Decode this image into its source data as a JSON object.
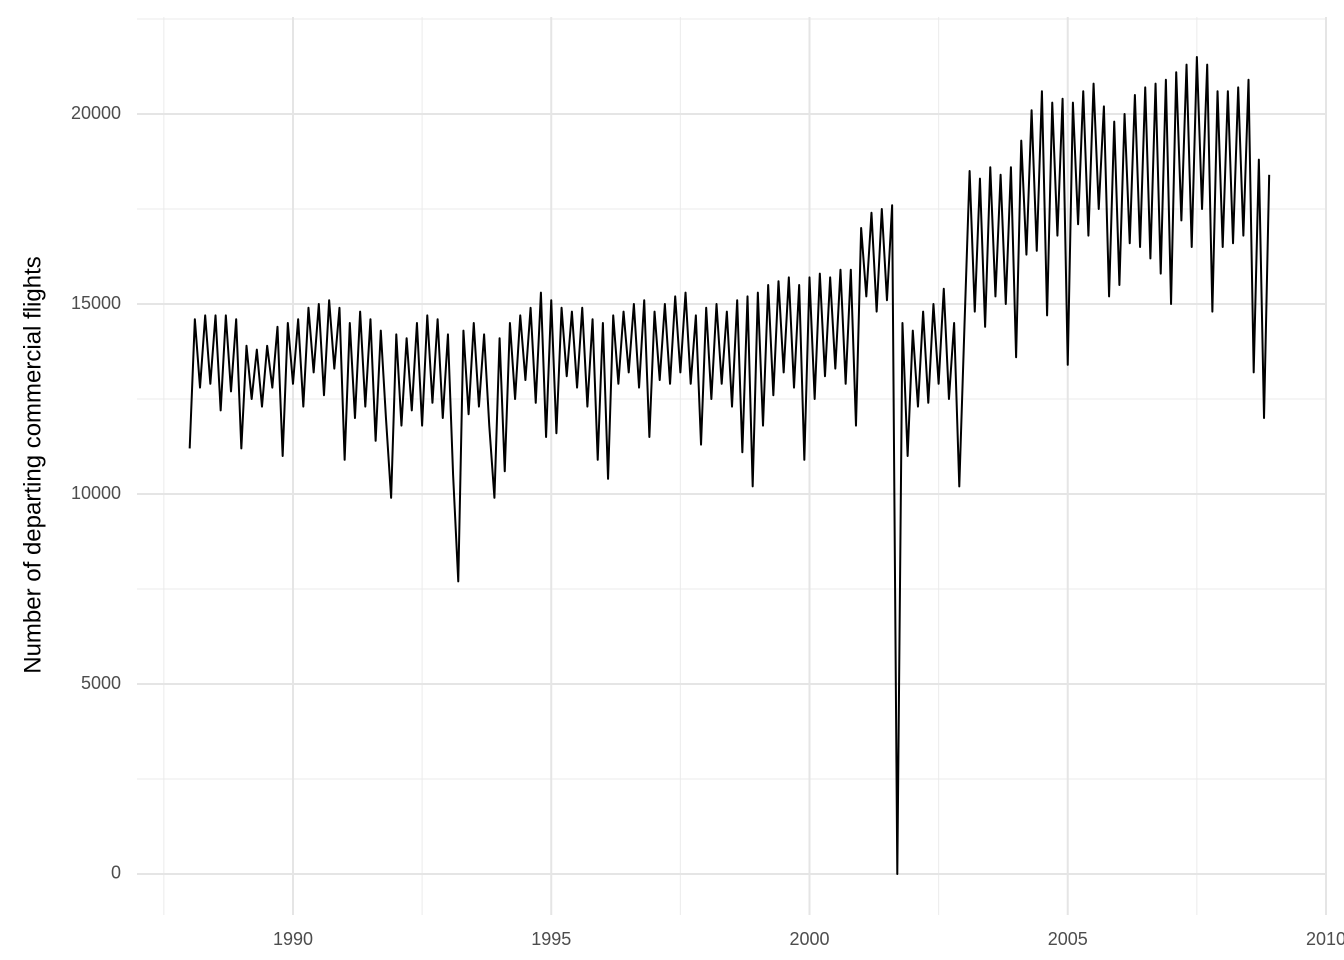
{
  "chart_data": {
    "type": "line",
    "y_label": "Number of departing commercial flights",
    "xlim": [
      1986.98,
      2010
    ],
    "ylim": [
      -1079,
      22553
    ],
    "xticks": [
      1990,
      1995,
      2000,
      2005,
      2010
    ],
    "yticks": [
      0,
      5000,
      10000,
      15000,
      20000
    ],
    "x_minor_breaks": [
      1987.5,
      1992.5,
      1997.5,
      2002.5,
      2007.5
    ],
    "y_minor_breaks": [
      2500,
      7500,
      12500,
      17500,
      22500
    ],
    "grid": true,
    "x": [
      1988.0,
      1988.1,
      1988.2,
      1988.3,
      1988.4,
      1988.5,
      1988.6,
      1988.7,
      1988.8,
      1988.9,
      1989.0,
      1989.1,
      1989.2,
      1989.3,
      1989.4,
      1989.5,
      1989.6,
      1989.7,
      1989.8,
      1989.9,
      1990.0,
      1990.1,
      1990.2,
      1990.3,
      1990.4,
      1990.5,
      1990.6,
      1990.7,
      1990.8,
      1990.9,
      1991.0,
      1991.1,
      1991.2,
      1991.3,
      1991.4,
      1991.5,
      1991.6,
      1991.7,
      1991.8,
      1991.9,
      1992.0,
      1992.1,
      1992.2,
      1992.3,
      1992.4,
      1992.5,
      1992.6,
      1992.7,
      1992.8,
      1992.9,
      1993.0,
      1993.1,
      1993.2,
      1993.3,
      1993.4,
      1993.5,
      1993.6,
      1993.7,
      1993.8,
      1993.9,
      1994.0,
      1994.1,
      1994.2,
      1994.3,
      1994.4,
      1994.5,
      1994.6,
      1994.7,
      1994.8,
      1994.9,
      1995.0,
      1995.1,
      1995.2,
      1995.3,
      1995.4,
      1995.5,
      1995.6,
      1995.7,
      1995.8,
      1995.9,
      1996.0,
      1996.1,
      1996.2,
      1996.3,
      1996.4,
      1996.5,
      1996.6,
      1996.7,
      1996.8,
      1996.9,
      1997.0,
      1997.1,
      1997.2,
      1997.3,
      1997.4,
      1997.5,
      1997.6,
      1997.7,
      1997.8,
      1997.9,
      1998.0,
      1998.1,
      1998.2,
      1998.3,
      1998.4,
      1998.5,
      1998.6,
      1998.7,
      1998.8,
      1998.9,
      1999.0,
      1999.1,
      1999.2,
      1999.3,
      1999.4,
      1999.5,
      1999.6,
      1999.7,
      1999.8,
      1999.9,
      2000.0,
      2000.1,
      2000.2,
      2000.3,
      2000.4,
      2000.5,
      2000.6,
      2000.7,
      2000.8,
      2000.9,
      2001.0,
      2001.1,
      2001.2,
      2001.3,
      2001.4,
      2001.5,
      2001.6,
      2001.7,
      2001.8,
      2001.9,
      2002.0,
      2002.1,
      2002.2,
      2002.3,
      2002.4,
      2002.5,
      2002.6,
      2002.7,
      2002.8,
      2002.9,
      2003.0,
      2003.1,
      2003.2,
      2003.3,
      2003.4,
      2003.5,
      2003.6,
      2003.7,
      2003.8,
      2003.9,
      2004.0,
      2004.1,
      2004.2,
      2004.3,
      2004.4,
      2004.5,
      2004.6,
      2004.7,
      2004.8,
      2004.9,
      2005.0,
      2005.1,
      2005.2,
      2005.3,
      2005.4,
      2005.5,
      2005.6,
      2005.7,
      2005.8,
      2005.9,
      2006.0,
      2006.1,
      2006.2,
      2006.3,
      2006.4,
      2006.5,
      2006.6,
      2006.7,
      2006.8,
      2006.9,
      2007.0,
      2007.1,
      2007.2,
      2007.3,
      2007.4,
      2007.5,
      2007.6,
      2007.7,
      2007.8,
      2007.9,
      2008.0,
      2008.1,
      2008.2,
      2008.3,
      2008.4,
      2008.5,
      2008.6,
      2008.7,
      2008.8,
      2008.9
    ],
    "series": [
      {
        "color": "#000000",
        "values": [
          11200,
          14600,
          12800,
          14700,
          12900,
          14700,
          12200,
          14700,
          12700,
          14600,
          11200,
          13900,
          12500,
          13800,
          12300,
          13900,
          12800,
          14400,
          11000,
          14500,
          12900,
          14600,
          12300,
          14900,
          13200,
          15000,
          12600,
          15100,
          13300,
          14900,
          10900,
          14500,
          12000,
          14800,
          12300,
          14600,
          11400,
          14300,
          12000,
          9900,
          14200,
          11800,
          14100,
          12200,
          14500,
          11800,
          14700,
          12400,
          14600,
          12000,
          14200,
          10500,
          7700,
          14300,
          12100,
          14500,
          12300,
          14200,
          11800,
          9900,
          14100,
          10600,
          14500,
          12500,
          14700,
          13000,
          14900,
          12400,
          15300,
          11500,
          15100,
          11600,
          14900,
          13100,
          14800,
          12800,
          14900,
          12300,
          14600,
          10900,
          14500,
          10400,
          14700,
          12900,
          14800,
          13200,
          15000,
          12800,
          15100,
          11500,
          14800,
          13000,
          15000,
          12900,
          15200,
          13200,
          15300,
          12900,
          14700,
          11300,
          14900,
          12500,
          15000,
          12900,
          14800,
          12300,
          15100,
          11100,
          15200,
          10200,
          15300,
          11800,
          15500,
          12600,
          15600,
          13200,
          15700,
          12800,
          15500,
          10900,
          15700,
          12500,
          15800,
          13100,
          15700,
          13300,
          15900,
          12900,
          15900,
          11800,
          17000,
          15200,
          17400,
          14800,
          17500,
          15100,
          17600,
          0,
          14500,
          11000,
          14300,
          12300,
          14800,
          12400,
          15000,
          12900,
          15400,
          12500,
          14500,
          10200,
          14400,
          18500,
          14800,
          18300,
          14400,
          18600,
          15200,
          18400,
          15000,
          18600,
          13600,
          19300,
          16300,
          20100,
          16400,
          20600,
          14700,
          20300,
          16800,
          20400,
          13400,
          20300,
          17100,
          20600,
          16800,
          20800,
          17500,
          20200,
          15200,
          19800,
          15500,
          20000,
          16600,
          20500,
          16500,
          20700,
          16200,
          20800,
          15800,
          20900,
          15000,
          21100,
          17200,
          21300,
          16500,
          21500,
          17500,
          21300,
          14800,
          20600,
          16500,
          20600,
          16600,
          20700,
          16800,
          20900,
          13200,
          18800,
          12000,
          18400
        ]
      }
    ]
  }
}
